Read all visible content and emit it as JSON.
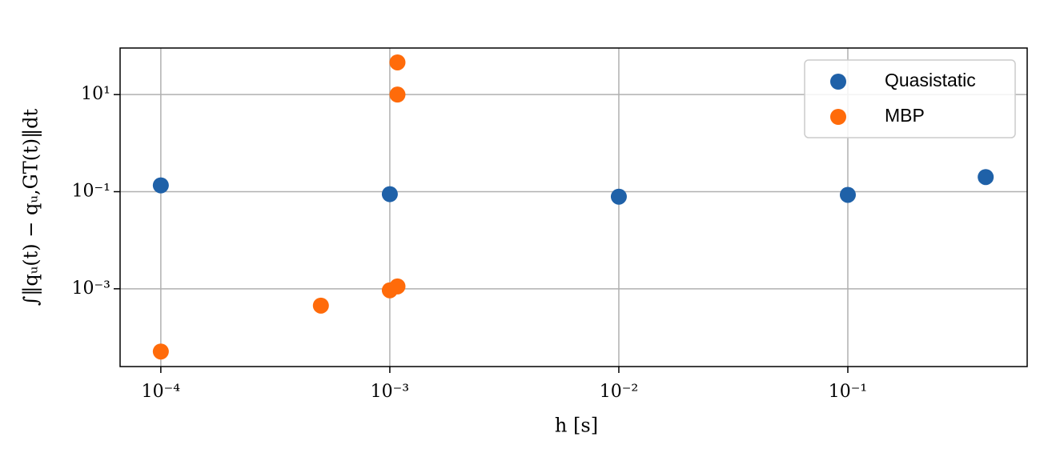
{
  "chart_data": {
    "type": "scatter",
    "xlabel": "h [s]",
    "ylabel": "∫‖qᵤ(t) − qᵤ,GT(t)‖dt",
    "xscale": "log",
    "yscale": "log",
    "grid": true,
    "legend": "upper right",
    "xlim": [
      6.64e-05,
      0.607
    ],
    "ylim": [
      2.5e-05,
      91
    ],
    "xticks": [
      {
        "value": 0.0001,
        "label": "10⁻⁴"
      },
      {
        "value": 0.001,
        "label": "10⁻³"
      },
      {
        "value": 0.01,
        "label": "10⁻²"
      },
      {
        "value": 0.1,
        "label": "10⁻¹"
      }
    ],
    "yticks": [
      {
        "value": 0.001,
        "label": "10⁻³"
      },
      {
        "value": 0.1,
        "label": "10⁻¹"
      },
      {
        "value": 10,
        "label": "10¹"
      }
    ],
    "series": [
      {
        "name": "Quasistatic",
        "color": "#1f61a8",
        "x": [
          0.0001,
          0.001,
          0.01,
          0.1,
          0.4
        ],
        "values": [
          0.135,
          0.089,
          0.079,
          0.086,
          0.2
        ]
      },
      {
        "name": "MBP",
        "color": "#ff6b0a",
        "x": [
          0.00108,
          0.00108,
          0.001,
          0.00108,
          0.0005,
          0.0001
        ],
        "values": [
          46,
          10,
          0.00093,
          0.00112,
          0.00045,
          5.1e-05
        ]
      }
    ]
  }
}
